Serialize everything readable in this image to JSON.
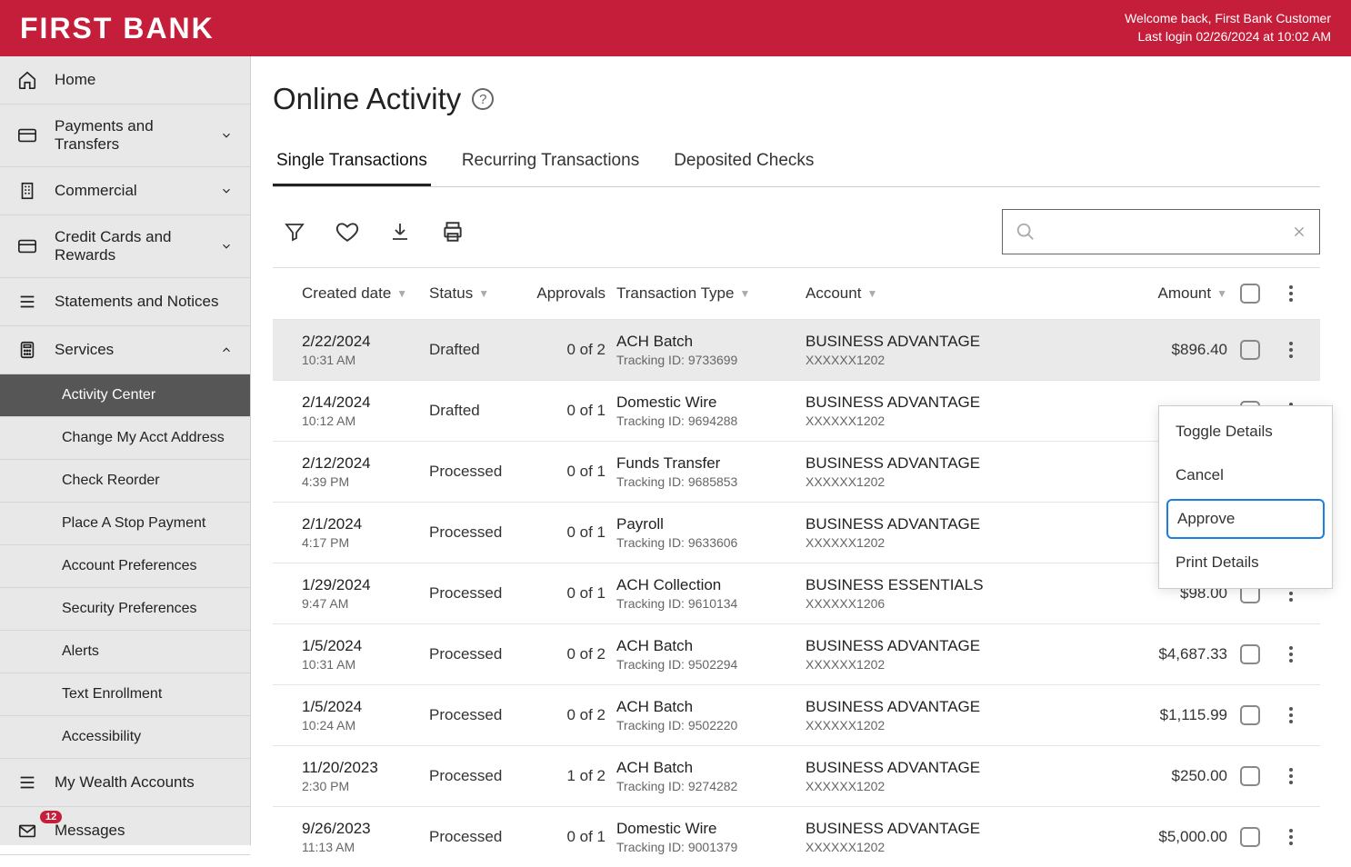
{
  "header": {
    "logo": "FIRST BANK",
    "welcome": "Welcome back, First Bank Customer",
    "last_login": "Last login 02/26/2024 at 10:02 AM"
  },
  "sidebar": {
    "items": [
      {
        "label": "Home",
        "icon": "home",
        "expandable": false
      },
      {
        "label": "Payments and Transfers",
        "icon": "card",
        "expandable": true,
        "open": false
      },
      {
        "label": "Commercial",
        "icon": "building",
        "expandable": true,
        "open": false
      },
      {
        "label": "Credit Cards and Rewards",
        "icon": "card",
        "expandable": true,
        "open": false
      },
      {
        "label": "Statements and Notices",
        "icon": "lines",
        "expandable": false
      },
      {
        "label": "Services",
        "icon": "calculator",
        "expandable": true,
        "open": true
      }
    ],
    "services_sub": [
      {
        "label": "Activity Center",
        "active": true
      },
      {
        "label": "Change My Acct Address",
        "active": false
      },
      {
        "label": "Check Reorder",
        "active": false
      },
      {
        "label": "Place A Stop Payment",
        "active": false
      },
      {
        "label": "Account Preferences",
        "active": false
      },
      {
        "label": "Security Preferences",
        "active": false
      },
      {
        "label": "Alerts",
        "active": false
      },
      {
        "label": "Text Enrollment",
        "active": false
      },
      {
        "label": "Accessibility",
        "active": false
      }
    ],
    "after": [
      {
        "label": "My Wealth Accounts",
        "icon": "lines"
      },
      {
        "label": "Messages",
        "icon": "mail",
        "badge": "12"
      }
    ]
  },
  "page": {
    "title": "Online Activity",
    "tabs": [
      {
        "label": "Single Transactions",
        "active": true
      },
      {
        "label": "Recurring Transactions",
        "active": false
      },
      {
        "label": "Deposited Checks",
        "active": false
      }
    ],
    "columns": {
      "created": "Created date",
      "status": "Status",
      "approvals": "Approvals",
      "type": "Transaction Type",
      "account": "Account",
      "amount": "Amount"
    },
    "tracking_label": "Tracking ID:",
    "context_menu": [
      {
        "label": "Toggle Details",
        "highlighted": false
      },
      {
        "label": "Cancel",
        "highlighted": false
      },
      {
        "label": "Approve",
        "highlighted": true
      },
      {
        "label": "Print Details",
        "highlighted": false
      }
    ],
    "rows": [
      {
        "date": "2/22/2024",
        "time": "10:31 AM",
        "status": "Drafted",
        "approvals": "0 of 2",
        "type": "ACH Batch",
        "tracking": "9733699",
        "account": "BUSINESS ADVANTAGE",
        "account_num": "XXXXXX1202",
        "amount": "$896.40",
        "selected": true
      },
      {
        "date": "2/14/2024",
        "time": "10:12 AM",
        "status": "Drafted",
        "approvals": "0 of 1",
        "type": "Domestic Wire",
        "tracking": "9694288",
        "account": "BUSINESS ADVANTAGE",
        "account_num": "XXXXXX1202",
        "amount": "",
        "selected": false
      },
      {
        "date": "2/12/2024",
        "time": "4:39 PM",
        "status": "Processed",
        "approvals": "0 of 1",
        "type": "Funds Transfer",
        "tracking": "9685853",
        "account": "BUSINESS ADVANTAGE",
        "account_num": "XXXXXX1202",
        "amount": "",
        "selected": false
      },
      {
        "date": "2/1/2024",
        "time": "4:17 PM",
        "status": "Processed",
        "approvals": "0 of 1",
        "type": "Payroll",
        "tracking": "9633606",
        "account": "BUSINESS ADVANTAGE",
        "account_num": "XXXXXX1202",
        "amount": "",
        "selected": false
      },
      {
        "date": "1/29/2024",
        "time": "9:47 AM",
        "status": "Processed",
        "approvals": "0 of 1",
        "type": "ACH Collection",
        "tracking": "9610134",
        "account": "BUSINESS ESSENTIALS",
        "account_num": "XXXXXX1206",
        "amount": "$98.00",
        "selected": false
      },
      {
        "date": "1/5/2024",
        "time": "10:31 AM",
        "status": "Processed",
        "approvals": "0 of 2",
        "type": "ACH Batch",
        "tracking": "9502294",
        "account": "BUSINESS ADVANTAGE",
        "account_num": "XXXXXX1202",
        "amount": "$4,687.33",
        "selected": false
      },
      {
        "date": "1/5/2024",
        "time": "10:24 AM",
        "status": "Processed",
        "approvals": "0 of 2",
        "type": "ACH Batch",
        "tracking": "9502220",
        "account": "BUSINESS ADVANTAGE",
        "account_num": "XXXXXX1202",
        "amount": "$1,115.99",
        "selected": false
      },
      {
        "date": "11/20/2023",
        "time": "2:30 PM",
        "status": "Processed",
        "approvals": "1 of 2",
        "type": "ACH Batch",
        "tracking": "9274282",
        "account": "BUSINESS ADVANTAGE",
        "account_num": "XXXXXX1202",
        "amount": "$250.00",
        "selected": false
      },
      {
        "date": "9/26/2023",
        "time": "11:13 AM",
        "status": "Processed",
        "approvals": "0 of 1",
        "type": "Domestic Wire",
        "tracking": "9001379",
        "account": "BUSINESS ADVANTAGE",
        "account_num": "XXXXXX1202",
        "amount": "$5,000.00",
        "selected": false
      }
    ]
  },
  "colors": {
    "brand": "#c41e3a",
    "sidebar_bg": "#e8e8e8",
    "active_sub": "#565656"
  }
}
